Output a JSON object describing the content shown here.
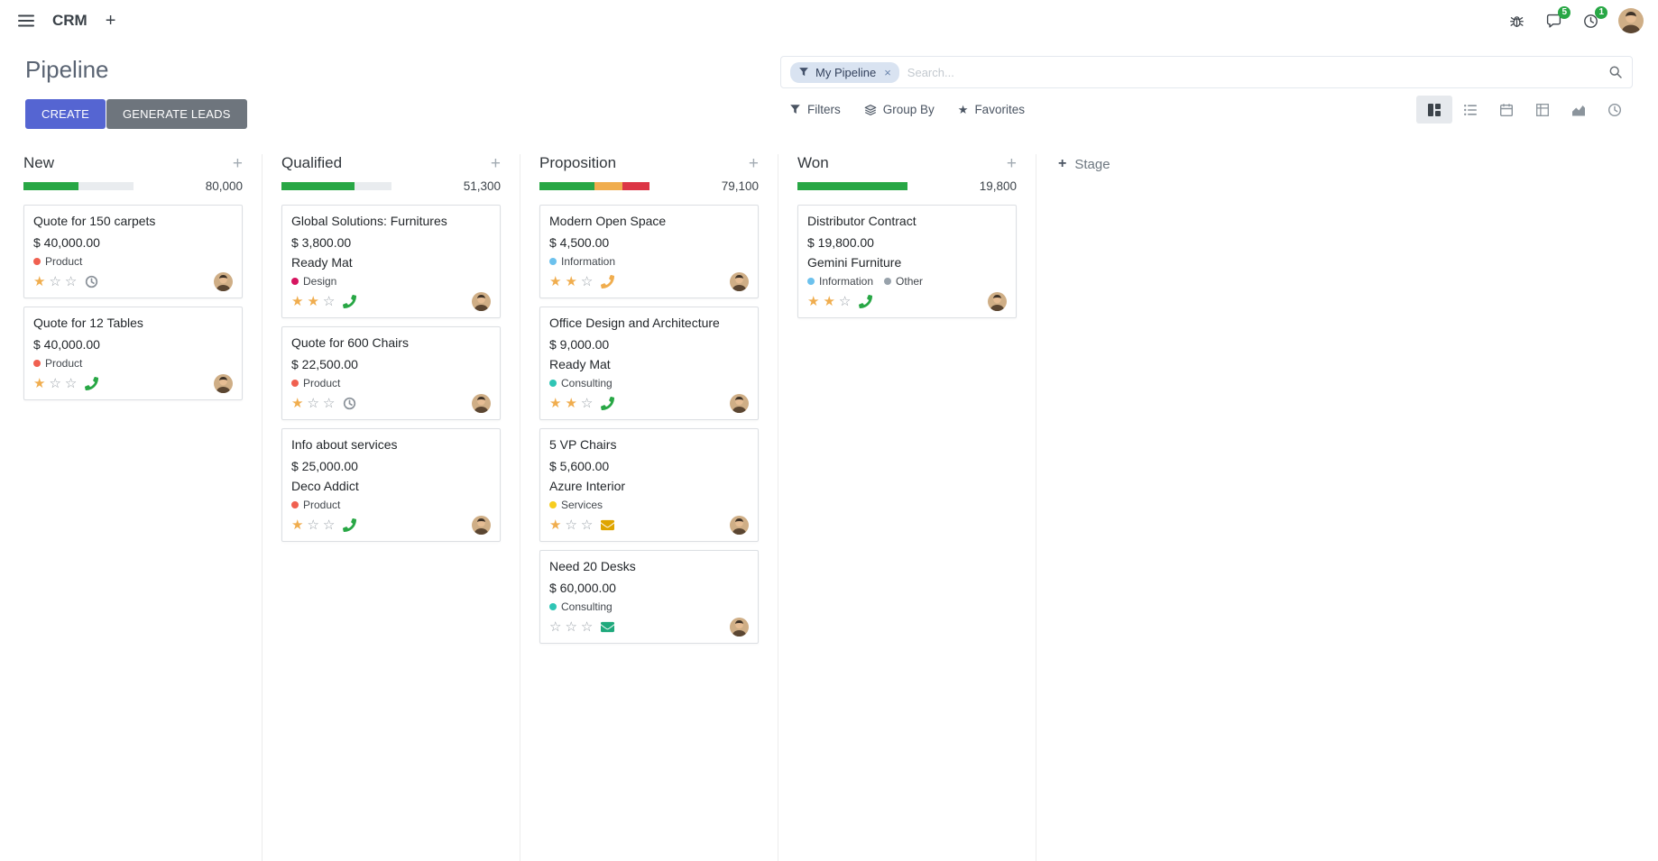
{
  "colors": {
    "primary": "#5565d2",
    "secondary": "#6e757d",
    "success": "#28a745",
    "warning": "#f0ad4e",
    "danger": "#dc3545",
    "star_on": "#f0ad4e",
    "star_off": "#9aa1a8"
  },
  "icons": {
    "plus": "+",
    "close": "×",
    "star_filled": "★",
    "star_empty": "☆"
  },
  "navbar": {
    "app_name": "CRM",
    "messages_badge": "5",
    "activities_badge": "1"
  },
  "control_panel": {
    "title": "Pipeline",
    "create_label": "CREATE",
    "generate_leads_label": "GENERATE LEADS",
    "filters_label": "Filters",
    "group_by_label": "Group By",
    "favorites_label": "Favorites",
    "search": {
      "facet_label": "My Pipeline",
      "placeholder": "Search..."
    }
  },
  "kanban": {
    "add_stage_label": "Stage",
    "columns": [
      {
        "name": "New",
        "total": "80,000",
        "progress": [
          {
            "color": "success",
            "pct": 50
          }
        ],
        "cards": [
          {
            "title": "Quote for 150 carpets",
            "amount": "$ 40,000.00",
            "tags": [
              {
                "label": "Product",
                "color": "#f06050"
              }
            ],
            "stars": 1,
            "activity": {
              "icon": "clock",
              "color": "#8a9199"
            }
          },
          {
            "title": "Quote for 12 Tables",
            "amount": "$ 40,000.00",
            "tags": [
              {
                "label": "Product",
                "color": "#f06050"
              }
            ],
            "stars": 1,
            "activity": {
              "icon": "phone",
              "color": "#28a745"
            }
          }
        ]
      },
      {
        "name": "Qualified",
        "total": "51,300",
        "progress": [
          {
            "color": "success",
            "pct": 66
          }
        ],
        "cards": [
          {
            "title": "Global Solutions: Furnitures",
            "amount": "$ 3,800.00",
            "partner": "Ready Mat",
            "tags": [
              {
                "label": "Design",
                "color": "#d6145f"
              }
            ],
            "stars": 2,
            "activity": {
              "icon": "phone",
              "color": "#28a745"
            }
          },
          {
            "title": "Quote for 600 Chairs",
            "amount": "$ 22,500.00",
            "tags": [
              {
                "label": "Product",
                "color": "#f06050"
              }
            ],
            "stars": 1,
            "activity": {
              "icon": "clock",
              "color": "#8a9199"
            }
          },
          {
            "title": "Info about services",
            "amount": "$ 25,000.00",
            "partner": "Deco Addict",
            "tags": [
              {
                "label": "Product",
                "color": "#f06050"
              }
            ],
            "stars": 1,
            "activity": {
              "icon": "phone",
              "color": "#28a745"
            }
          }
        ]
      },
      {
        "name": "Proposition",
        "total": "79,100",
        "progress": [
          {
            "color": "success",
            "pct": 50
          },
          {
            "color": "warning",
            "pct": 25
          },
          {
            "color": "danger",
            "pct": 25
          }
        ],
        "cards": [
          {
            "title": "Modern Open Space",
            "amount": "$ 4,500.00",
            "tags": [
              {
                "label": "Information",
                "color": "#6cc1ed"
              }
            ],
            "stars": 2,
            "activity": {
              "icon": "phone",
              "color": "#f0ad4e"
            }
          },
          {
            "title": "Office Design and Architecture",
            "amount": "$ 9,000.00",
            "partner": "Ready Mat",
            "tags": [
              {
                "label": "Consulting",
                "color": "#2fc5b5"
              }
            ],
            "stars": 2,
            "activity": {
              "icon": "phone",
              "color": "#28a745"
            }
          },
          {
            "title": "5 VP Chairs",
            "amount": "$ 5,600.00",
            "partner": "Azure Interior",
            "tags": [
              {
                "label": "Services",
                "color": "#f7cd1f"
              }
            ],
            "stars": 1,
            "activity": {
              "icon": "envelope",
              "color": "#dfa500"
            }
          },
          {
            "title": "Need 20 Desks",
            "amount": "$ 60,000.00",
            "tags": [
              {
                "label": "Consulting",
                "color": "#2fc5b5"
              }
            ],
            "stars": 0,
            "activity": {
              "icon": "envelope",
              "color": "#1fa97c"
            }
          }
        ]
      },
      {
        "name": "Won",
        "total": "19,800",
        "progress": [
          {
            "color": "success",
            "pct": 100
          }
        ],
        "cards": [
          {
            "title": "Distributor Contract",
            "amount": "$ 19,800.00",
            "partner": "Gemini Furniture",
            "tags": [
              {
                "label": "Information",
                "color": "#6cc1ed"
              },
              {
                "label": "Other",
                "color": "#98a2ab"
              }
            ],
            "stars": 2,
            "activity": {
              "icon": "phone",
              "color": "#28a745"
            }
          }
        ]
      }
    ]
  }
}
